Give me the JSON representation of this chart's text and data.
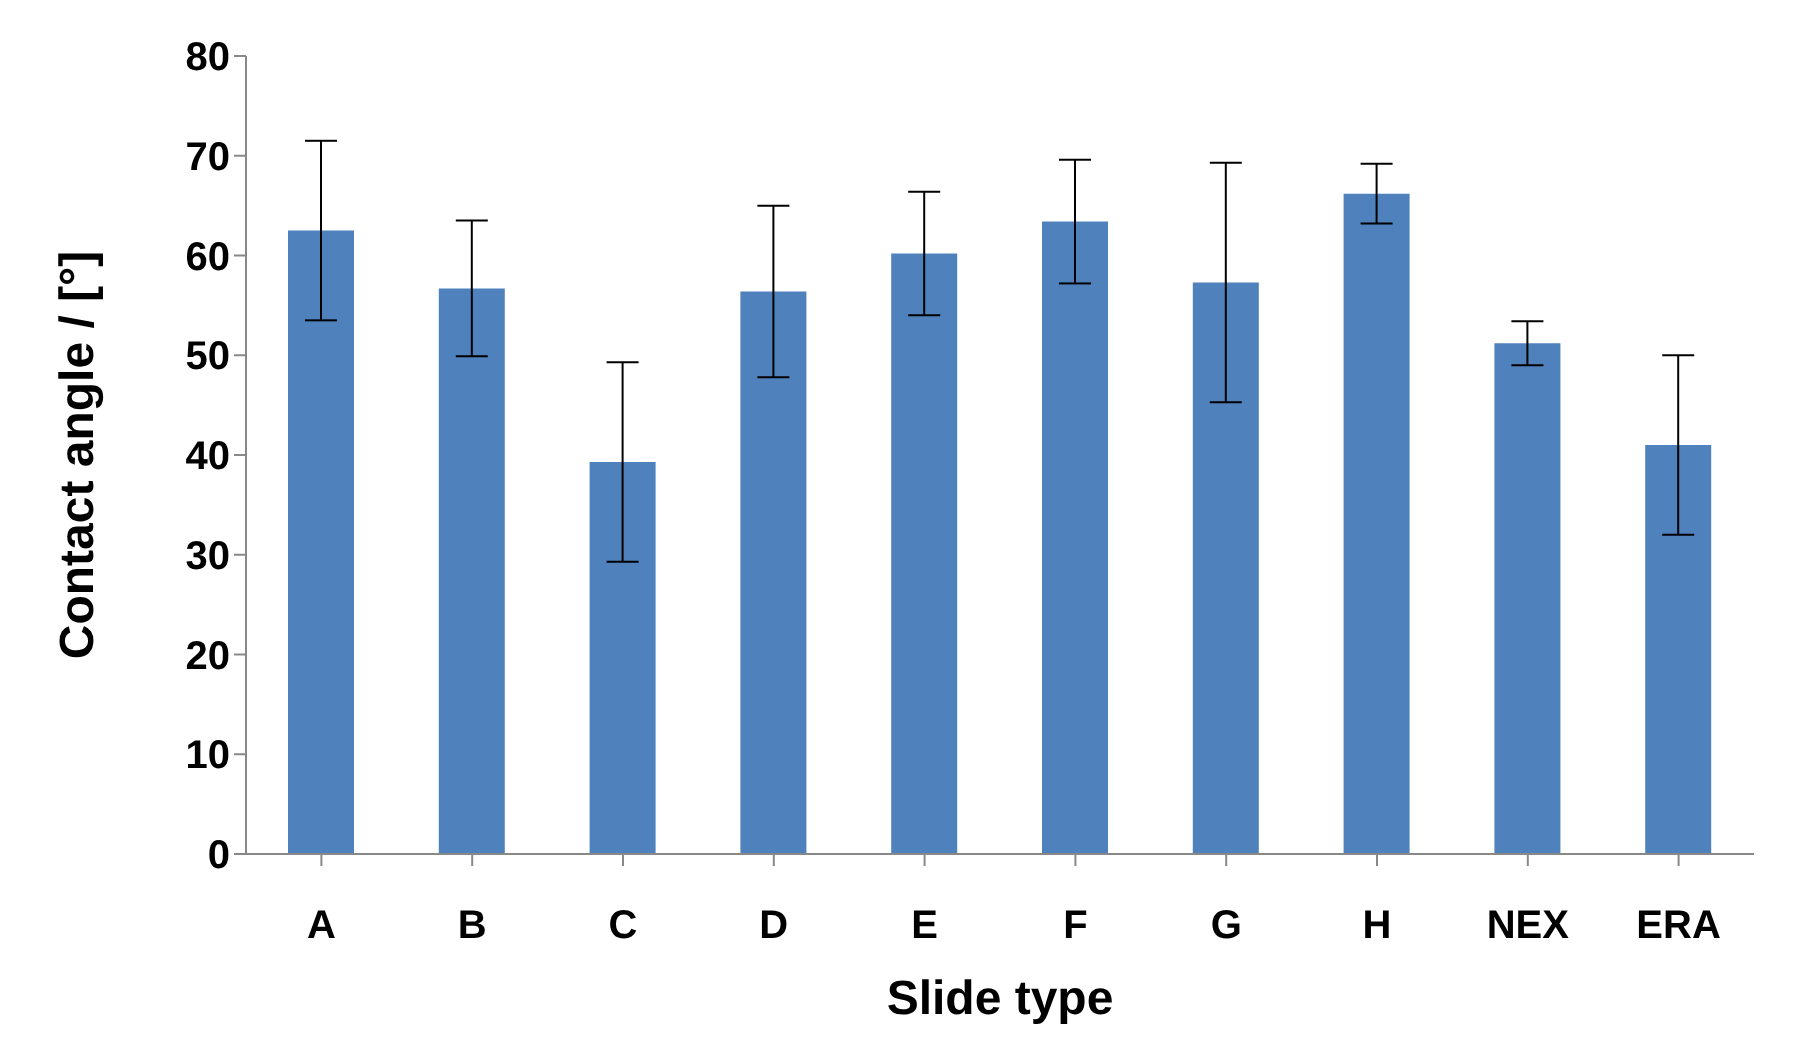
{
  "chart_data": {
    "type": "bar",
    "xlabel": "Slide type",
    "ylabel": "Contact angle / [°]",
    "categories": [
      "A",
      "B",
      "C",
      "D",
      "E",
      "F",
      "G",
      "H",
      "NEX",
      "ERA"
    ],
    "values": [
      62.5,
      56.7,
      39.3,
      56.4,
      60.2,
      63.4,
      57.3,
      66.2,
      51.2,
      41
    ],
    "errors": [
      9,
      6.8,
      10,
      8.6,
      6.2,
      6.2,
      12,
      3,
      2.2,
      9
    ],
    "color": "#4f81bd",
    "ylim": [
      0,
      80
    ],
    "yticks": [
      0,
      10,
      20,
      30,
      40,
      50,
      60,
      70,
      80
    ],
    "grid": false
  }
}
